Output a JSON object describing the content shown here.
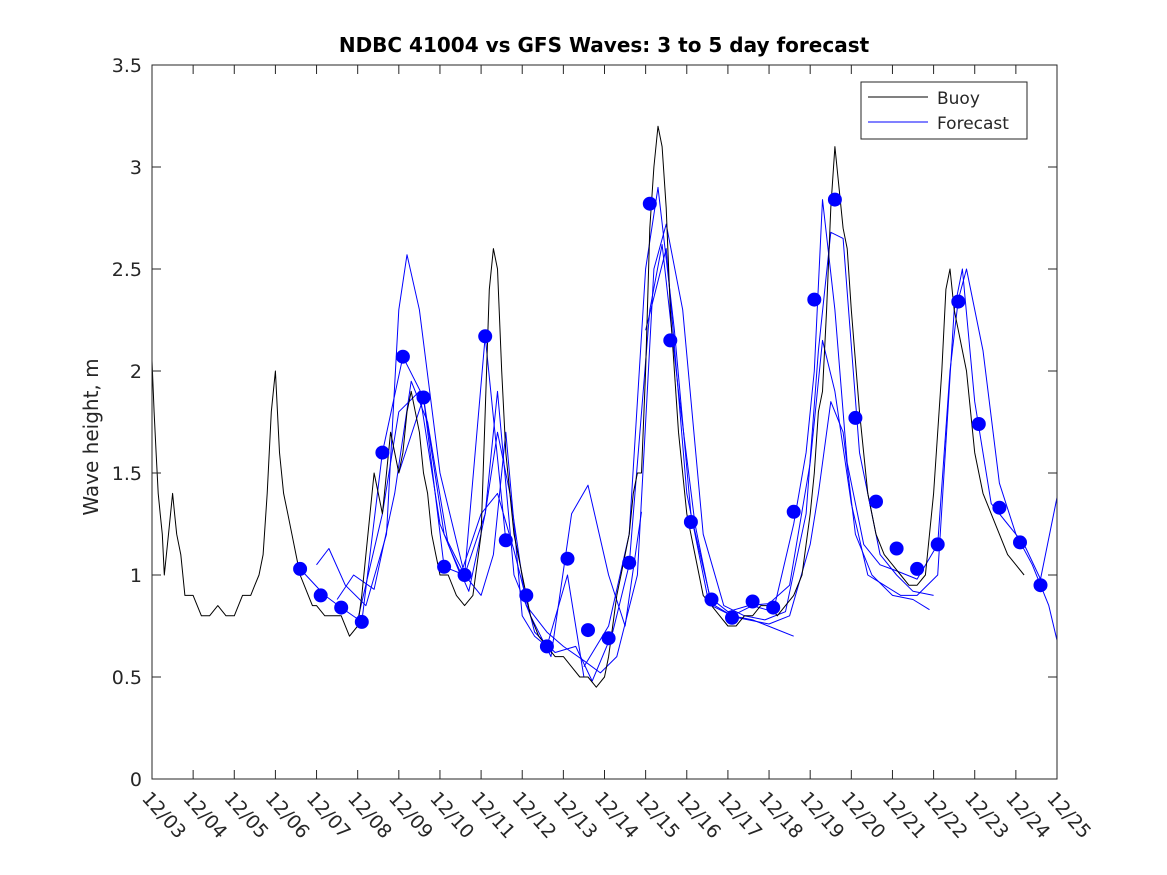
{
  "chart_data": {
    "type": "line",
    "title": "NDBC 41004 vs GFS Waves: 3 to 5 day forecast",
    "xlabel": "",
    "ylabel": "Wave height, m",
    "xlim": [
      3,
      25
    ],
    "ylim": [
      0,
      3.5
    ],
    "yticks": [
      0,
      0.5,
      1,
      1.5,
      2,
      2.5,
      3,
      3.5
    ],
    "yticklabels": [
      "0",
      "0.5",
      "1",
      "1.5",
      "2",
      "2.5",
      "3",
      "3.5"
    ],
    "xticks": [
      3,
      4,
      5,
      6,
      7,
      8,
      9,
      10,
      11,
      12,
      13,
      14,
      15,
      16,
      17,
      18,
      19,
      20,
      21,
      22,
      23,
      24,
      25
    ],
    "xticklabels": [
      "12/03",
      "12/04",
      "12/05",
      "12/06",
      "12/07",
      "12/08",
      "12/09",
      "12/10",
      "12/11",
      "12/12",
      "12/13",
      "12/14",
      "12/15",
      "12/16",
      "12/17",
      "12/18",
      "12/19",
      "12/20",
      "12/21",
      "12/22",
      "12/23",
      "12/24",
      "12/25"
    ],
    "grid": false,
    "legend": {
      "location": "top-right",
      "entries": [
        "Buoy",
        "Forecast"
      ]
    },
    "colors": {
      "buoy": "#000000",
      "forecast": "#0000ff",
      "markers": "#0000ff",
      "axes": "#262626"
    },
    "buoy": {
      "name": "Buoy",
      "x": [
        3.0,
        3.05,
        3.1,
        3.15,
        3.2,
        3.25,
        3.3,
        3.4,
        3.5,
        3.55,
        3.6,
        3.7,
        3.8,
        3.9,
        4.0,
        4.2,
        4.4,
        4.6,
        4.8,
        5.0,
        5.2,
        5.4,
        5.5,
        5.6,
        5.7,
        5.8,
        5.9,
        6.0,
        6.1,
        6.2,
        6.3,
        6.4,
        6.5,
        6.6,
        6.7,
        6.8,
        6.9,
        7.0,
        7.2,
        7.4,
        7.6,
        7.8,
        8.0,
        8.1,
        8.2,
        8.3,
        8.4,
        8.5,
        8.6,
        8.7,
        8.8,
        8.9,
        9.0,
        9.1,
        9.2,
        9.3,
        9.4,
        9.5,
        9.6,
        9.7,
        9.8,
        9.9,
        10.0,
        10.2,
        10.4,
        10.6,
        10.8,
        11.0,
        11.1,
        11.2,
        11.3,
        11.4,
        11.5,
        11.6,
        11.8,
        12.0,
        12.2,
        12.4,
        12.6,
        12.8,
        13.0,
        13.2,
        13.4,
        13.6,
        13.8,
        14.0,
        14.1,
        14.2,
        14.3,
        14.4,
        14.5,
        14.6,
        14.7,
        14.8,
        14.9,
        15.0,
        15.1,
        15.2,
        15.3,
        15.4,
        15.5,
        15.6,
        15.8,
        16.0,
        16.2,
        16.4,
        16.6,
        16.8,
        17.0,
        17.2,
        17.4,
        17.6,
        17.8,
        18.0,
        18.2,
        18.4,
        18.6,
        18.8,
        19.0,
        19.1,
        19.2,
        19.3,
        19.4,
        19.5,
        19.6,
        19.7,
        19.8,
        19.9,
        20.0,
        20.2,
        20.4,
        20.6,
        20.8,
        21.0,
        21.2,
        21.4,
        21.6,
        21.8,
        22.0,
        22.2,
        22.3,
        22.4,
        22.5,
        22.6,
        22.7,
        22.8,
        22.9,
        23.0,
        23.2,
        23.4,
        23.6,
        23.8,
        24.0,
        24.2
      ],
      "y": [
        2.05,
        1.8,
        1.6,
        1.4,
        1.3,
        1.2,
        1.0,
        1.2,
        1.4,
        1.3,
        1.2,
        1.1,
        0.9,
        0.9,
        0.9,
        0.8,
        0.8,
        0.85,
        0.8,
        0.8,
        0.9,
        0.9,
        0.95,
        1.0,
        1.1,
        1.4,
        1.8,
        2.0,
        1.6,
        1.4,
        1.3,
        1.2,
        1.1,
        1.0,
        0.95,
        0.9,
        0.85,
        0.85,
        0.8,
        0.8,
        0.8,
        0.7,
        0.75,
        0.9,
        1.1,
        1.3,
        1.5,
        1.4,
        1.3,
        1.5,
        1.7,
        1.6,
        1.5,
        1.6,
        1.8,
        1.9,
        1.8,
        1.7,
        1.5,
        1.4,
        1.2,
        1.1,
        1.0,
        1.0,
        0.9,
        0.85,
        0.9,
        1.2,
        1.8,
        2.4,
        2.6,
        2.5,
        2.0,
        1.6,
        1.2,
        1.0,
        0.8,
        0.7,
        0.65,
        0.6,
        0.6,
        0.55,
        0.5,
        0.5,
        0.45,
        0.5,
        0.6,
        0.75,
        0.9,
        1.0,
        1.1,
        1.2,
        1.4,
        1.5,
        1.5,
        2.0,
        2.7,
        3.0,
        3.2,
        3.1,
        2.8,
        2.3,
        1.7,
        1.3,
        1.1,
        0.9,
        0.85,
        0.8,
        0.75,
        0.75,
        0.8,
        0.8,
        0.85,
        0.85,
        0.8,
        0.85,
        0.9,
        1.0,
        1.3,
        1.5,
        1.8,
        1.9,
        2.3,
        2.8,
        3.1,
        2.9,
        2.7,
        2.6,
        2.3,
        1.8,
        1.4,
        1.2,
        1.1,
        1.05,
        1.0,
        0.95,
        0.95,
        1.0,
        1.4,
        2.0,
        2.4,
        2.5,
        2.3,
        2.2,
        2.1,
        2.0,
        1.8,
        1.6,
        1.4,
        1.3,
        1.2,
        1.1,
        1.05,
        1.0
      ]
    },
    "forecast_runs": [
      {
        "name": "Forecast",
        "x": [
          6.6,
          7.2,
          7.6,
          8.1,
          8.6,
          9.1,
          9.6,
          10.1,
          10.6,
          11.1,
          11.6
        ],
        "y": [
          1.03,
          0.9,
          0.84,
          0.77,
          1.6,
          2.07,
          1.87,
          1.04,
          1.0,
          2.17,
          1.17
        ]
      },
      {
        "name": "Forecast",
        "x": [
          7.0,
          7.3,
          7.7,
          8.2,
          8.7,
          9.0,
          9.2,
          9.5,
          10.0,
          10.6,
          11.0,
          11.3,
          11.6,
          12.0,
          12.3,
          12.6,
          13.1,
          13.5
        ],
        "y": [
          1.05,
          1.13,
          0.95,
          0.85,
          1.2,
          2.3,
          2.57,
          2.3,
          1.5,
          1.0,
          0.9,
          1.1,
          1.7,
          0.8,
          0.7,
          0.65,
          1.0,
          0.5
        ]
      },
      {
        "name": "Forecast",
        "x": [
          7.5,
          7.9,
          8.4,
          8.9,
          9.3,
          9.7,
          10.2,
          10.7,
          11.1,
          11.4,
          11.8,
          12.2,
          12.7,
          13.2,
          13.6,
          14.1,
          14.5,
          14.9
        ],
        "y": [
          0.88,
          1.0,
          0.93,
          1.4,
          1.95,
          1.75,
          1.15,
          0.92,
          1.3,
          1.9,
          1.0,
          0.8,
          0.6,
          1.3,
          1.44,
          1.0,
          0.75,
          1.31
        ]
      },
      {
        "name": "Forecast",
        "x": [
          8.0,
          8.6,
          9.0,
          9.5,
          10.0,
          10.5,
          11.0,
          11.4,
          11.8,
          12.3,
          12.8,
          13.3,
          13.7,
          14.2,
          14.6,
          15.1,
          15.4,
          15.8,
          16.2,
          16.6,
          17.1,
          17.6,
          18.1,
          18.6
        ],
        "y": [
          0.78,
          1.3,
          1.8,
          1.9,
          1.25,
          1.0,
          1.3,
          1.4,
          1.12,
          0.72,
          0.62,
          0.65,
          0.48,
          0.72,
          1.05,
          2.3,
          2.62,
          1.9,
          1.25,
          0.85,
          0.8,
          0.78,
          0.74,
          0.7
        ]
      },
      {
        "name": "Forecast",
        "x": [
          9.0,
          9.6,
          10.1,
          10.6,
          11.1,
          11.4,
          11.7,
          12.1,
          12.6,
          13.0,
          13.5,
          13.9,
          14.3,
          14.8,
          15.2,
          15.5,
          15.9,
          16.4,
          16.9,
          17.4,
          17.9,
          18.4,
          18.9,
          19.2,
          19.5,
          19.8,
          20.2,
          20.7,
          21.1,
          21.5,
          22.0
        ],
        "y": [
          1.5,
          1.87,
          1.2,
          1.0,
          1.3,
          1.7,
          1.4,
          0.85,
          0.72,
          0.65,
          0.58,
          0.52,
          0.6,
          1.0,
          2.5,
          2.72,
          2.3,
          1.2,
          0.85,
          0.8,
          0.78,
          0.82,
          1.3,
          2.1,
          2.68,
          2.65,
          1.6,
          1.1,
          1.0,
          0.92,
          0.9
        ]
      },
      {
        "name": "Forecast",
        "x": [
          13.5,
          14.1,
          14.6,
          15.0,
          15.3,
          15.7,
          16.1,
          16.6,
          17.1,
          17.6,
          18.1,
          18.6,
          18.9,
          19.1,
          19.3,
          19.6,
          19.9,
          20.3,
          20.7,
          21.1,
          21.6,
          22.1,
          22.4,
          22.6,
          22.8,
          23.2,
          23.6,
          24.0,
          24.4,
          24.8,
          25.0
        ],
        "y": [
          0.55,
          0.75,
          1.2,
          2.5,
          2.9,
          2.2,
          1.3,
          0.86,
          0.8,
          0.85,
          0.82,
          1.25,
          1.6,
          2.0,
          2.84,
          2.3,
          1.55,
          1.15,
          1.05,
          1.02,
          0.98,
          1.15,
          2.0,
          2.35,
          2.5,
          2.1,
          1.45,
          1.2,
          1.05,
          0.85,
          0.68
        ]
      },
      {
        "name": "Forecast",
        "x": [
          15.0,
          15.5,
          16.0,
          16.5,
          17.0,
          17.5,
          18.0,
          18.5,
          19.0,
          19.3,
          19.6,
          20.0,
          20.4,
          20.8,
          21.2,
          21.6,
          22.1,
          22.5,
          22.7,
          23.0,
          23.4,
          23.8,
          24.2,
          24.6,
          25.0
        ],
        "y": [
          2.2,
          2.6,
          1.4,
          0.9,
          0.82,
          0.85,
          0.86,
          0.95,
          1.55,
          2.15,
          1.9,
          1.35,
          1.0,
          0.95,
          0.9,
          0.9,
          1.0,
          2.3,
          2.5,
          1.85,
          1.35,
          1.25,
          1.15,
          0.98,
          1.38
        ]
      },
      {
        "name": "Forecast",
        "x": [
          17.0,
          17.5,
          18.0,
          18.5,
          19.0,
          19.2,
          19.5,
          19.8,
          20.1,
          20.5,
          21.0,
          21.5,
          21.9
        ],
        "y": [
          0.8,
          0.78,
          0.76,
          0.8,
          1.15,
          1.4,
          1.85,
          1.7,
          1.2,
          1.0,
          0.9,
          0.88,
          0.83
        ]
      }
    ],
    "forecast_markers": {
      "name": "Forecast",
      "x": [
        6.6,
        7.1,
        7.6,
        8.1,
        8.6,
        9.1,
        9.6,
        10.1,
        10.6,
        11.1,
        11.6,
        12.1,
        12.6,
        13.1,
        13.6,
        14.1,
        14.6,
        15.1,
        15.6,
        16.1,
        16.6,
        17.1,
        17.6,
        18.1,
        18.6,
        19.1,
        19.6,
        20.1,
        20.6,
        21.1,
        21.6,
        22.1,
        22.6,
        23.1,
        23.6,
        24.1,
        24.6
      ],
      "y": [
        1.03,
        0.9,
        0.84,
        0.77,
        1.6,
        2.07,
        1.87,
        1.04,
        1.0,
        2.17,
        1.17,
        0.9,
        0.65,
        1.08,
        0.73,
        0.69,
        1.06,
        2.82,
        2.15,
        1.26,
        0.88,
        0.79,
        0.87,
        0.84,
        1.31,
        2.35,
        2.84,
        1.77,
        1.36,
        1.13,
        1.03,
        1.15,
        2.34,
        1.74,
        1.33,
        1.16,
        0.95
      ]
    }
  }
}
